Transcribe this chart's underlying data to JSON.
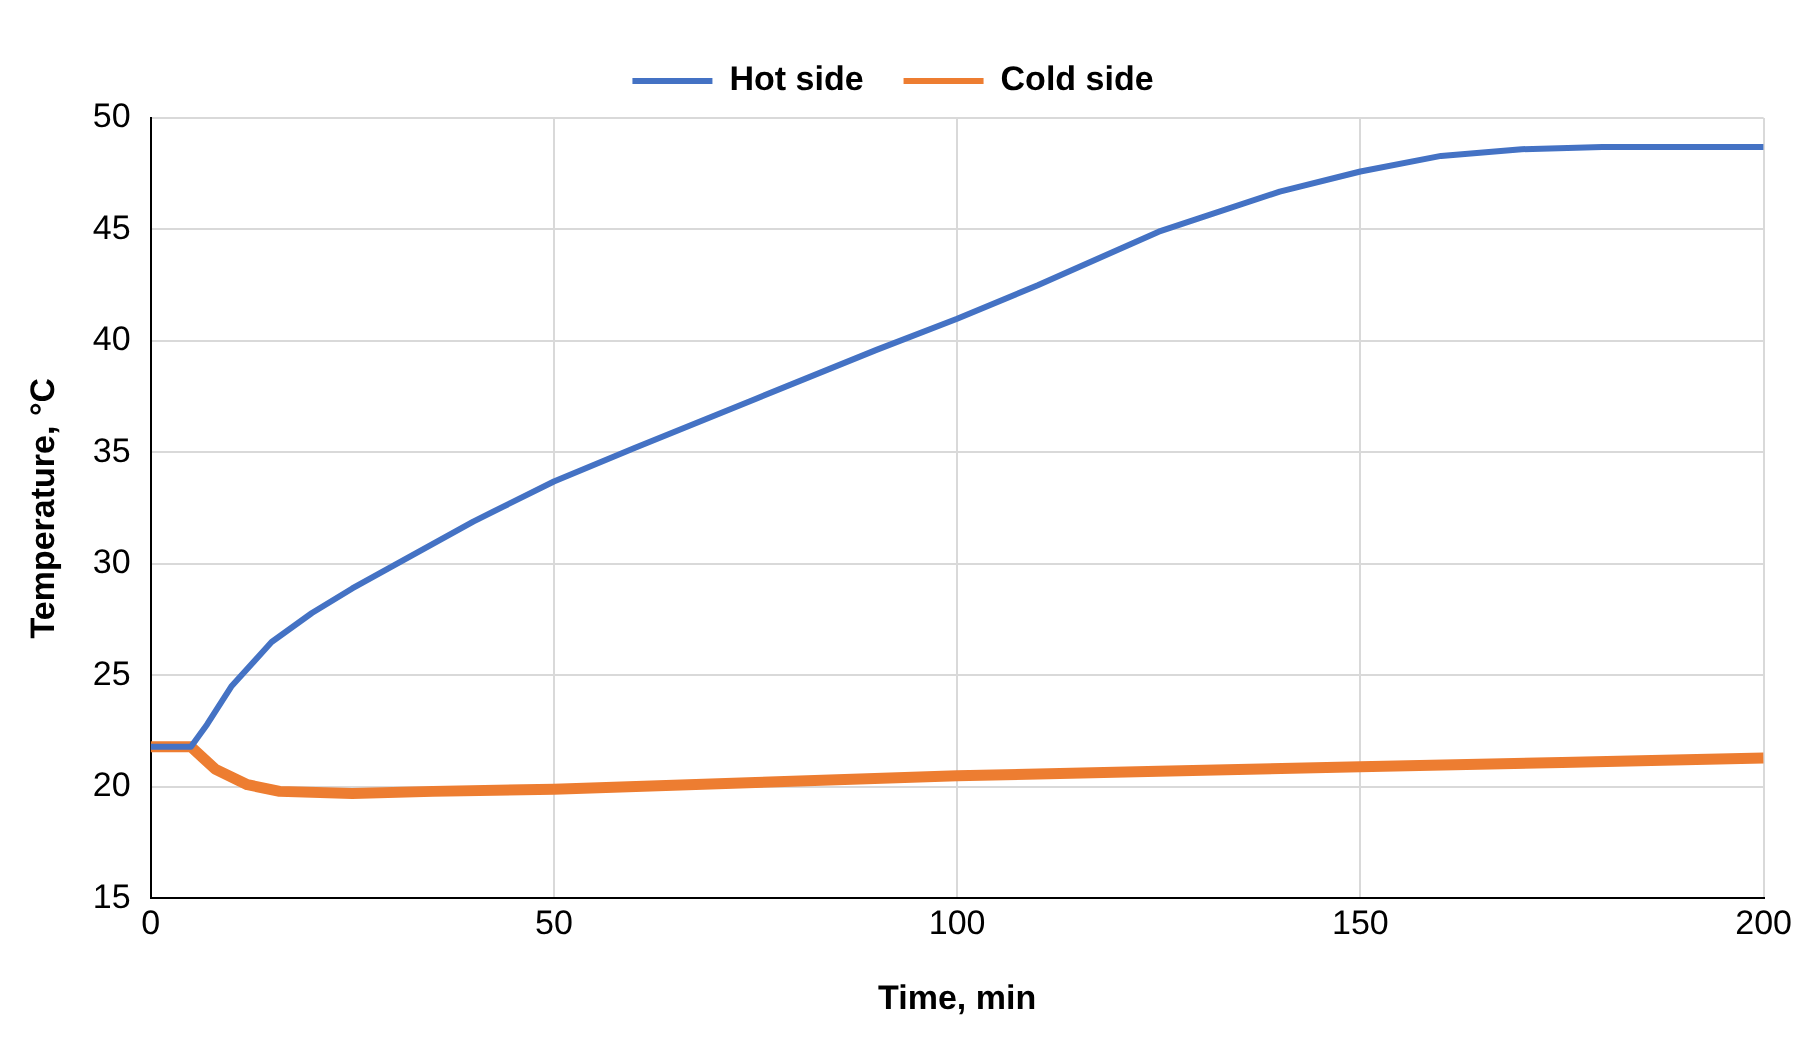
{
  "chart_data": {
    "type": "line",
    "xlabel": "Time, min",
    "ylabel": "Temperature, °C",
    "xlim": [
      0,
      200
    ],
    "xticks": [
      0,
      50,
      100,
      150,
      200
    ],
    "ylim": [
      15,
      50
    ],
    "yticks": [
      15,
      20,
      25,
      30,
      35,
      40,
      45,
      50
    ],
    "grid": true,
    "legend": "top",
    "marker": "none",
    "line_style": "solid",
    "series": [
      {
        "name": "Hot side",
        "color": "#4472c4",
        "x": [
          0,
          5,
          7,
          10,
          15,
          20,
          25,
          30,
          40,
          50,
          60,
          75,
          90,
          100,
          110,
          125,
          140,
          150,
          160,
          170,
          180,
          190,
          200
        ],
        "values": [
          21.8,
          21.8,
          22.8,
          24.5,
          26.5,
          27.8,
          28.9,
          29.9,
          31.9,
          33.7,
          35.2,
          37.4,
          39.6,
          41.0,
          42.5,
          44.9,
          46.7,
          47.6,
          48.3,
          48.6,
          48.7,
          48.7,
          48.7
        ]
      },
      {
        "name": "Cold side",
        "color": "#ed7d31",
        "x": [
          0,
          5,
          8,
          12,
          16,
          25,
          35,
          50,
          75,
          100,
          125,
          150,
          175,
          200
        ],
        "values": [
          21.8,
          21.8,
          20.8,
          20.1,
          19.8,
          19.7,
          19.8,
          19.9,
          20.2,
          20.5,
          20.7,
          20.9,
          21.1,
          21.3
        ]
      }
    ]
  }
}
